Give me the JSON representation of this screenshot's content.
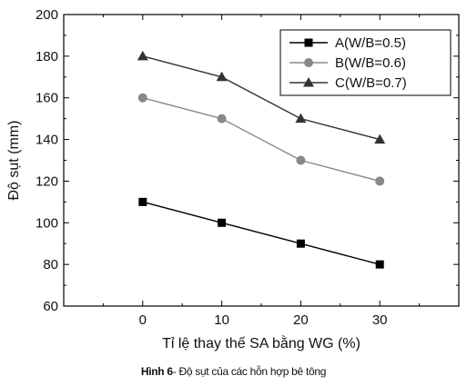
{
  "chart_data": {
    "type": "line",
    "x": [
      0,
      10,
      20,
      30
    ],
    "xlabel": "Tỉ lệ thay thế SA bằng WG (%)",
    "ylabel": "Độ sụt (mm)",
    "xlim": [
      -10,
      40
    ],
    "ylim": [
      60,
      200
    ],
    "xticks": [
      0,
      10,
      20,
      30
    ],
    "yticks": [
      60,
      80,
      100,
      120,
      140,
      160,
      180,
      200
    ],
    "grid": false,
    "legend_position": "top-right",
    "series": [
      {
        "name": "A(W/B=0.5)",
        "values": [
          110,
          100,
          90,
          80
        ],
        "color": "#000000",
        "marker": "square"
      },
      {
        "name": "B(W/B=0.6)",
        "values": [
          160,
          150,
          130,
          120
        ],
        "color": "#888888",
        "marker": "circle"
      },
      {
        "name": "C(W/B=0.7)",
        "values": [
          180,
          170,
          150,
          140
        ],
        "color": "#333333",
        "marker": "triangle"
      }
    ]
  },
  "caption": {
    "label": "Hình 6",
    "text": "- Độ sụt của các hỗn hợp bê tông"
  }
}
